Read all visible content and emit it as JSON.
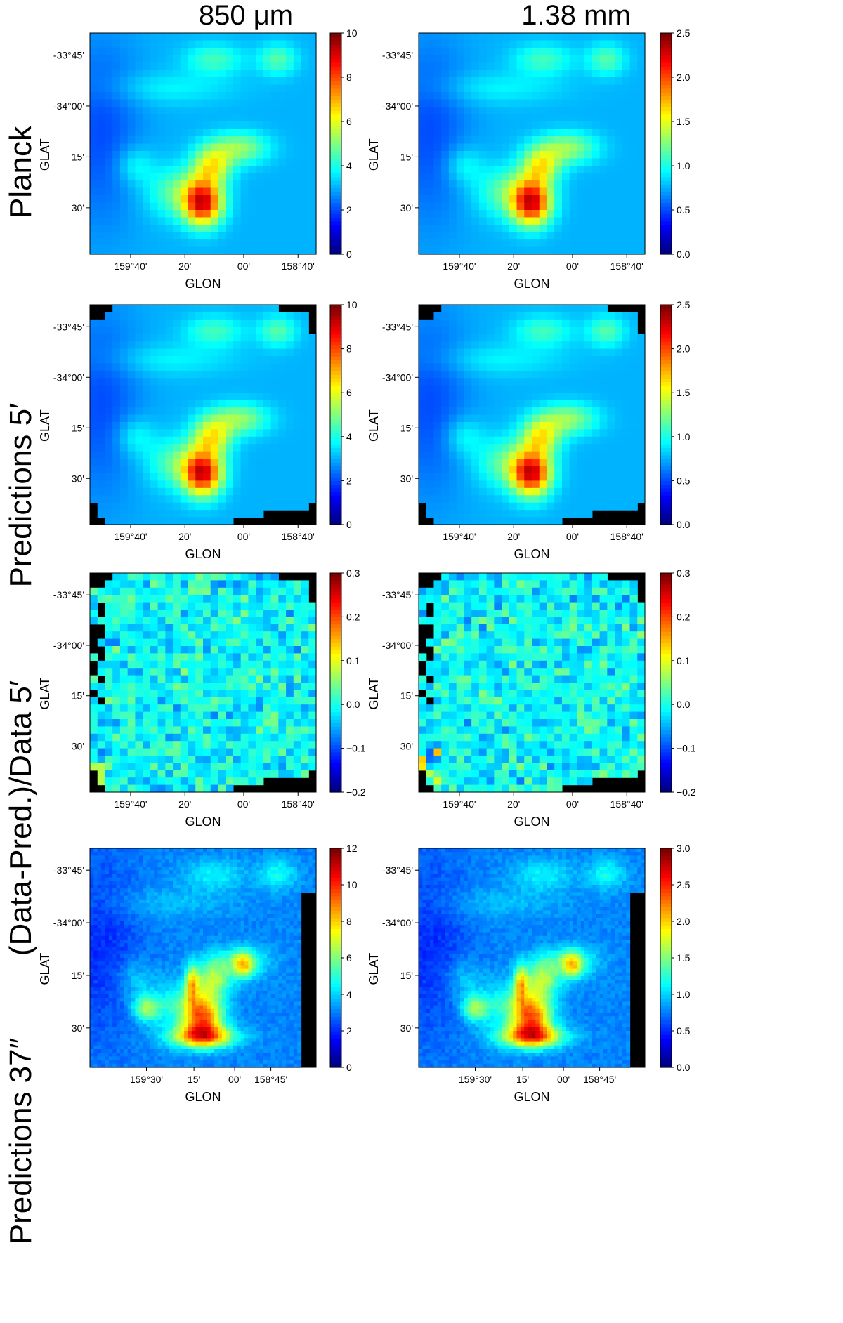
{
  "columns": [
    "850 μm",
    "1.38 mm"
  ],
  "rows": [
    "Planck",
    "Predictions 5′",
    "(Data-Pred.)/Data 5′",
    "Predictions 37″"
  ],
  "chart_data": [
    {
      "type": "heatmap",
      "row": "Planck",
      "column": "850 μm",
      "colormap": "jet",
      "xlabel": "GLON",
      "ylabel": "GLAT",
      "xticks": [
        "159°40'",
        "20'",
        "00'",
        "158°40'"
      ],
      "yticks": [
        "-33°45'",
        "-34°00'",
        "15'",
        "30'"
      ],
      "colorbar": {
        "range": [
          0,
          10
        ],
        "ticks": [
          "0",
          "2",
          "4",
          "6",
          "8",
          "10"
        ]
      },
      "peak_location": "lower-center"
    },
    {
      "type": "heatmap",
      "row": "Planck",
      "column": "1.38 mm",
      "colormap": "jet",
      "xlabel": "GLON",
      "ylabel": "GLAT",
      "xticks": [
        "159°40'",
        "20'",
        "00'",
        "158°40'"
      ],
      "yticks": [
        "-33°45'",
        "-34°00'",
        "15'",
        "30'"
      ],
      "colorbar": {
        "range": [
          0,
          2.5
        ],
        "ticks": [
          "0.0",
          "0.5",
          "1.0",
          "1.5",
          "2.0",
          "2.5"
        ]
      },
      "peak_location": "lower-center"
    },
    {
      "type": "heatmap",
      "row": "Predictions 5′",
      "column": "850 μm",
      "colormap": "jet",
      "xlabel": "GLON",
      "ylabel": "GLAT",
      "xticks": [
        "159°40'",
        "20'",
        "00'",
        "158°40'"
      ],
      "yticks": [
        "-33°45'",
        "-34°00'",
        "15'",
        "30'"
      ],
      "colorbar": {
        "range": [
          0,
          10
        ],
        "ticks": [
          "0",
          "2",
          "4",
          "6",
          "8",
          "10"
        ]
      },
      "masked_background": "black"
    },
    {
      "type": "heatmap",
      "row": "Predictions 5′",
      "column": "1.38 mm",
      "colormap": "jet",
      "xlabel": "GLON",
      "ylabel": "GLAT",
      "xticks": [
        "159°40'",
        "20'",
        "00'",
        "158°40'"
      ],
      "yticks": [
        "-33°45'",
        "-34°00'",
        "15'",
        "30'"
      ],
      "colorbar": {
        "range": [
          0,
          2.5
        ],
        "ticks": [
          "0.0",
          "0.5",
          "1.0",
          "1.5",
          "2.0",
          "2.5"
        ]
      },
      "masked_background": "black"
    },
    {
      "type": "heatmap",
      "row": "(Data-Pred.)/Data 5′",
      "column": "850 μm",
      "colormap": "jet",
      "xlabel": "GLON",
      "ylabel": "GLAT",
      "xticks": [
        "159°40'",
        "20'",
        "00'",
        "158°40'"
      ],
      "yticks": [
        "-33°45'",
        "-34°00'",
        "15'",
        "30'"
      ],
      "colorbar": {
        "range": [
          -0.2,
          0.3
        ],
        "ticks": [
          "−0.2",
          "−0.1",
          "0.0",
          "0.1",
          "0.2",
          "0.3"
        ]
      },
      "masked_background": "black"
    },
    {
      "type": "heatmap",
      "row": "(Data-Pred.)/Data 5′",
      "column": "1.38 mm",
      "colormap": "jet",
      "xlabel": "GLON",
      "ylabel": "GLAT",
      "xticks": [
        "159°40'",
        "20'",
        "00'",
        "158°40'"
      ],
      "yticks": [
        "-33°45'",
        "-34°00'",
        "15'",
        "30'"
      ],
      "colorbar": {
        "range": [
          -0.2,
          0.3
        ],
        "ticks": [
          "−0.2",
          "−0.1",
          "0.0",
          "0.1",
          "0.2",
          "0.3"
        ]
      },
      "masked_background": "black"
    },
    {
      "type": "heatmap",
      "row": "Predictions 37″",
      "column": "850 μm",
      "colormap": "jet",
      "xlabel": "GLON",
      "ylabel": "GLAT",
      "xticks": [
        "159°30'",
        "15'",
        "00'",
        "158°45'"
      ],
      "yticks": [
        "-33°45'",
        "-34°00'",
        "15'",
        "30'"
      ],
      "colorbar": {
        "range": [
          0,
          12
        ],
        "ticks": [
          "0",
          "2",
          "4",
          "6",
          "8",
          "10",
          "12"
        ]
      },
      "masked_background": "black"
    },
    {
      "type": "heatmap",
      "row": "Predictions 37″",
      "column": "1.38 mm",
      "colormap": "jet",
      "xlabel": "GLON",
      "ylabel": "GLAT",
      "xticks": [
        "159°30'",
        "15'",
        "00'",
        "158°45'"
      ],
      "yticks": [
        "-33°45'",
        "-34°00'",
        "15'",
        "30'"
      ],
      "colorbar": {
        "range": [
          0,
          3.0
        ],
        "ticks": [
          "0.0",
          "0.5",
          "1.0",
          "1.5",
          "2.0",
          "2.5",
          "3.0"
        ]
      },
      "masked_background": "black"
    }
  ]
}
